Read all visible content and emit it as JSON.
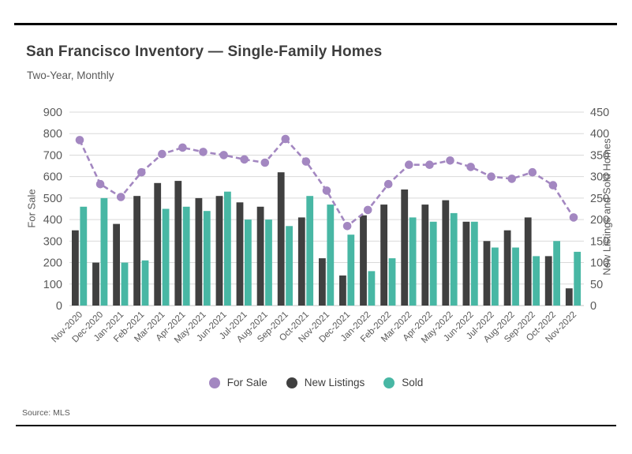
{
  "header": {
    "title": "San Francisco Inventory — Single-Family Homes",
    "subtitle": "Two-Year, Monthly"
  },
  "footer": {
    "source": "Source: MLS"
  },
  "colors": {
    "for_sale": "#a387c1",
    "new_listings": "#404040",
    "sold": "#48b7a4",
    "gridline": "#d9d9d9",
    "axis_text": "#595959",
    "title_text": "#3d3d3d"
  },
  "legend": [
    {
      "label": "For Sale",
      "color": "#a387c1"
    },
    {
      "label": "New Listings",
      "color": "#404040"
    },
    {
      "label": "Sold",
      "color": "#48b7a4"
    }
  ],
  "chart_data": {
    "type": "combo-line-and-grouped-bar",
    "categories": [
      "Nov-2020",
      "Dec-2020",
      "Jan-2021",
      "Feb-2021",
      "Mar-2021",
      "Apr-2021",
      "May-2021",
      "Jun-2021",
      "Jul-2021",
      "Aug-2021",
      "Sep-2021",
      "Oct-2021",
      "Nov-2021",
      "Dec-2021",
      "Jan-2022",
      "Feb-2022",
      "Mar-2022",
      "Apr-2022",
      "May-2022",
      "Jun-2022",
      "Jul-2022",
      "Aug-2022",
      "Sep-2022",
      "Oct-2022",
      "Nov-2022"
    ],
    "series": [
      {
        "name": "For Sale",
        "type": "line",
        "axis": "left",
        "color": "#a387c1",
        "values": [
          770,
          565,
          505,
          620,
          705,
          735,
          715,
          700,
          680,
          665,
          775,
          670,
          535,
          370,
          445,
          565,
          655,
          655,
          675,
          645,
          600,
          590,
          620,
          560,
          410
        ]
      },
      {
        "name": "New Listings",
        "type": "bar",
        "axis": "right",
        "color": "#404040",
        "values": [
          175,
          100,
          190,
          255,
          285,
          290,
          250,
          255,
          240,
          230,
          310,
          205,
          110,
          70,
          210,
          235,
          270,
          235,
          245,
          195,
          150,
          175,
          205,
          115,
          40
        ]
      },
      {
        "name": "Sold",
        "type": "bar",
        "axis": "right",
        "color": "#48b7a4",
        "values": [
          230,
          250,
          100,
          105,
          225,
          230,
          220,
          265,
          200,
          200,
          185,
          255,
          235,
          165,
          80,
          110,
          205,
          195,
          215,
          195,
          135,
          135,
          115,
          150,
          125
        ]
      }
    ],
    "left_axis": {
      "title": "For Sale",
      "min": 0,
      "max": 900,
      "step": 100,
      "ticks": [
        0,
        100,
        200,
        300,
        400,
        500,
        600,
        700,
        800,
        900
      ]
    },
    "right_axis": {
      "title": "New Listings and Sold Homes",
      "min": 0,
      "max": 450,
      "step": 50,
      "ticks": [
        0,
        50,
        100,
        150,
        200,
        250,
        300,
        350,
        400,
        450
      ]
    },
    "grid": true,
    "legend_position": "bottom",
    "line_style": "dashed-with-round-markers"
  }
}
